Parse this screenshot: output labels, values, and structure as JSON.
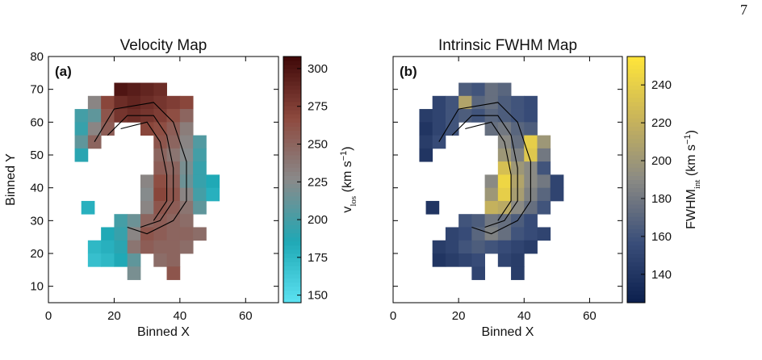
{
  "page_number": "7",
  "chart_data": [
    {
      "type": "heatmap",
      "title": "Velocity Map",
      "panel_label": "(a)",
      "x_label": "Binned X",
      "y_label": "Binned Y",
      "colorbar_label": [
        "v",
        "los",
        " (km s",
        "−1",
        ")"
      ],
      "xlim": [
        0,
        70
      ],
      "ylim": [
        5,
        80
      ],
      "xticks": [
        0,
        20,
        40,
        60
      ],
      "yticks": [
        10,
        20,
        30,
        40,
        50,
        60,
        70,
        80
      ],
      "clim": [
        145,
        308
      ],
      "cticks": [
        150,
        175,
        200,
        225,
        250,
        275,
        300
      ],
      "colormap": [
        "#5ce3f2",
        "#1fa8b5",
        "#8a8a8a",
        "#8e4a3f",
        "#3f0808"
      ],
      "x": [
        22,
        26,
        30,
        34,
        14,
        18,
        22,
        26,
        30,
        34,
        38,
        42,
        10,
        14,
        18,
        22,
        26,
        30,
        34,
        38,
        42,
        10,
        14,
        18,
        30,
        34,
        38,
        42,
        10,
        14,
        34,
        38,
        42,
        46,
        10,
        34,
        38,
        42,
        46,
        34,
        38,
        42,
        46,
        30,
        34,
        38,
        42,
        46,
        50,
        30,
        34,
        38,
        42,
        46,
        50,
        12,
        30,
        34,
        38,
        42,
        46,
        22,
        26,
        30,
        34,
        38,
        42,
        18,
        22,
        26,
        30,
        34,
        38,
        42,
        46,
        14,
        18,
        22,
        26,
        30,
        34,
        38,
        42,
        14,
        18,
        22,
        26,
        34,
        38,
        26,
        38
      ],
      "y": [
        70,
        70,
        70,
        70,
        66,
        66,
        66,
        66,
        66,
        66,
        66,
        66,
        62,
        62,
        62,
        62,
        62,
        62,
        62,
        62,
        62,
        58,
        58,
        58,
        58,
        58,
        58,
        58,
        54,
        54,
        54,
        54,
        54,
        54,
        50,
        50,
        50,
        50,
        50,
        46,
        46,
        46,
        46,
        42,
        42,
        42,
        42,
        42,
        42,
        38,
        38,
        38,
        38,
        38,
        38,
        34,
        34,
        34,
        34,
        34,
        34,
        30,
        30,
        30,
        30,
        30,
        30,
        26,
        26,
        26,
        26,
        26,
        26,
        26,
        26,
        22,
        22,
        22,
        22,
        22,
        22,
        22,
        22,
        18,
        18,
        18,
        18,
        18,
        18,
        14,
        14
      ],
      "values": [
        300,
        295,
        290,
        285,
        230,
        270,
        285,
        290,
        285,
        280,
        275,
        270,
        200,
        210,
        260,
        280,
        285,
        280,
        275,
        265,
        250,
        195,
        230,
        255,
        270,
        265,
        255,
        235,
        210,
        250,
        260,
        250,
        230,
        205,
        190,
        250,
        240,
        225,
        200,
        255,
        250,
        220,
        195,
        230,
        265,
        255,
        215,
        195,
        185,
        225,
        270,
        260,
        230,
        200,
        180,
        180,
        230,
        260,
        255,
        240,
        210,
        200,
        215,
        250,
        255,
        250,
        245,
        185,
        195,
        230,
        260,
        255,
        250,
        250,
        245,
        175,
        180,
        190,
        240,
        255,
        250,
        250,
        245,
        170,
        175,
        185,
        210,
        245,
        250,
        220,
        260
      ]
    },
    {
      "type": "heatmap",
      "title": "Intrinsic FWHM Map",
      "panel_label": "(b)",
      "x_label": "Binned X",
      "colorbar_label": [
        "FWHM",
        "int",
        " (km s",
        "−1",
        ")"
      ],
      "xlim": [
        0,
        70
      ],
      "ylim": [
        5,
        80
      ],
      "xticks": [
        0,
        20,
        40,
        60
      ],
      "yticks": [
        10,
        20,
        30,
        40,
        50,
        60,
        70,
        80
      ],
      "clim": [
        125,
        255
      ],
      "cticks": [
        140,
        160,
        180,
        200,
        220,
        240
      ],
      "colormap": [
        "#0b1f4d",
        "#3b4f7a",
        "#8a8a84",
        "#c9b45a",
        "#ffe53a"
      ],
      "x": [
        22,
        26,
        30,
        34,
        14,
        18,
        22,
        26,
        30,
        34,
        38,
        42,
        10,
        14,
        18,
        22,
        26,
        30,
        34,
        38,
        42,
        10,
        14,
        18,
        30,
        34,
        38,
        42,
        10,
        14,
        34,
        38,
        42,
        46,
        10,
        34,
        38,
        42,
        46,
        34,
        38,
        42,
        46,
        30,
        34,
        38,
        42,
        46,
        50,
        30,
        34,
        38,
        42,
        46,
        50,
        12,
        30,
        34,
        38,
        42,
        46,
        22,
        26,
        30,
        34,
        38,
        42,
        18,
        22,
        26,
        30,
        34,
        38,
        42,
        46,
        14,
        18,
        22,
        26,
        30,
        34,
        38,
        42,
        14,
        18,
        22,
        26,
        34,
        38,
        26,
        38
      ],
      "y": [
        70,
        70,
        70,
        70,
        66,
        66,
        66,
        66,
        66,
        66,
        66,
        66,
        62,
        62,
        62,
        62,
        62,
        62,
        62,
        62,
        62,
        58,
        58,
        58,
        58,
        58,
        58,
        58,
        54,
        54,
        54,
        54,
        54,
        54,
        50,
        50,
        50,
        50,
        50,
        46,
        46,
        46,
        46,
        42,
        42,
        42,
        42,
        42,
        42,
        38,
        38,
        38,
        38,
        38,
        38,
        34,
        34,
        34,
        34,
        34,
        34,
        30,
        30,
        30,
        30,
        30,
        30,
        26,
        26,
        26,
        26,
        26,
        26,
        26,
        26,
        22,
        22,
        22,
        22,
        22,
        22,
        22,
        22,
        18,
        18,
        18,
        18,
        18,
        18,
        14,
        14
      ],
      "values": [
        165,
        160,
        175,
        170,
        150,
        160,
        210,
        170,
        175,
        165,
        160,
        155,
        145,
        150,
        160,
        165,
        160,
        170,
        165,
        160,
        155,
        140,
        150,
        160,
        175,
        180,
        170,
        165,
        145,
        155,
        190,
        175,
        240,
        200,
        140,
        200,
        185,
        235,
        180,
        230,
        200,
        190,
        160,
        190,
        245,
        210,
        190,
        180,
        150,
        200,
        240,
        205,
        185,
        170,
        150,
        140,
        220,
        215,
        190,
        175,
        160,
        160,
        165,
        180,
        175,
        165,
        155,
        150,
        155,
        170,
        185,
        175,
        160,
        155,
        150,
        145,
        150,
        160,
        165,
        160,
        155,
        150,
        145,
        140,
        145,
        150,
        155,
        150,
        145,
        150,
        145
      ]
    }
  ]
}
